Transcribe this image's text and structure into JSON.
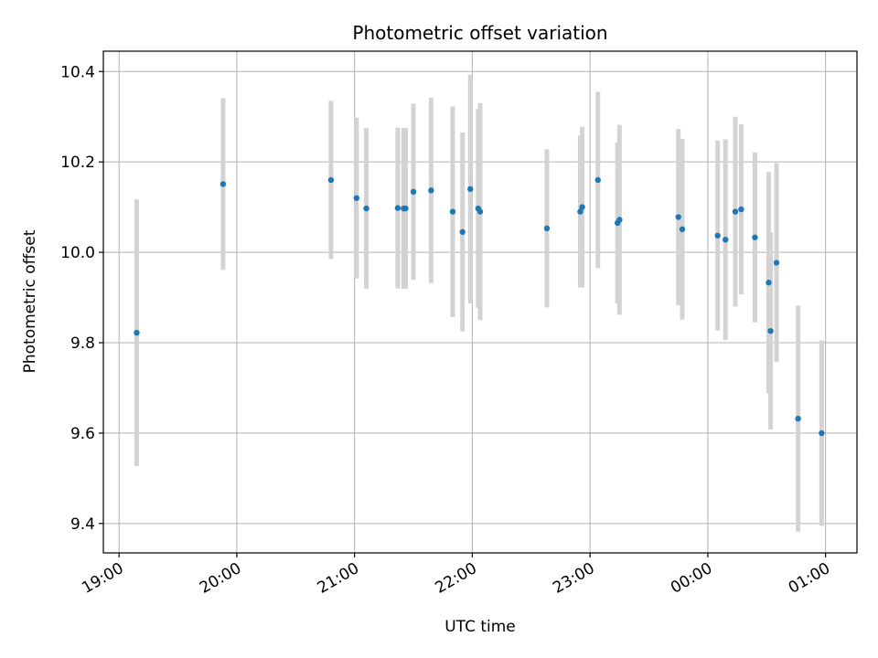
{
  "chart_data": {
    "type": "scatter",
    "title": "Photometric offset variation",
    "xlabel": "UTC time",
    "ylabel": "Photometric offset",
    "x_axis_type": "time",
    "xlim": [
      "18:52",
      "01:16"
    ],
    "ylim": [
      9.335,
      10.445
    ],
    "x_ticks": [
      "19:00",
      "20:00",
      "21:00",
      "22:00",
      "23:00",
      "00:00",
      "01:00"
    ],
    "y_ticks": [
      9.4,
      9.6,
      9.8,
      10.0,
      10.2,
      10.4
    ],
    "y_tick_labels": [
      "9.4",
      "9.6",
      "9.8",
      "10.0",
      "10.2",
      "10.4"
    ],
    "grid": true,
    "colors": {
      "marker": "#1f77b4",
      "errorbar": "#d3d3d3",
      "grid": "#b0b0b0"
    },
    "points": [
      {
        "x": "19:09",
        "y": 9.822,
        "y_err": 0.295
      },
      {
        "x": "19:53",
        "y": 10.151,
        "y_err": 0.19
      },
      {
        "x": "20:48",
        "y": 10.16,
        "y_err": 0.175
      },
      {
        "x": "21:01",
        "y": 10.12,
        "y_err": 0.178
      },
      {
        "x": "21:06",
        "y": 10.097,
        "y_err": 0.178
      },
      {
        "x": "21:22",
        "y": 10.098,
        "y_err": 0.178
      },
      {
        "x": "21:25",
        "y": 10.097,
        "y_err": 0.178
      },
      {
        "x": "21:26",
        "y": 10.097,
        "y_err": 0.178
      },
      {
        "x": "21:30",
        "y": 10.134,
        "y_err": 0.195
      },
      {
        "x": "21:39",
        "y": 10.137,
        "y_err": 0.205
      },
      {
        "x": "21:50",
        "y": 10.09,
        "y_err": 0.233
      },
      {
        "x": "21:55",
        "y": 10.045,
        "y_err": 0.22
      },
      {
        "x": "21:59",
        "y": 10.14,
        "y_err": 0.253
      },
      {
        "x": "22:03",
        "y": 10.097,
        "y_err": 0.22
      },
      {
        "x": "22:04",
        "y": 10.09,
        "y_err": 0.24
      },
      {
        "x": "22:38",
        "y": 10.053,
        "y_err": 0.175
      },
      {
        "x": "22:55",
        "y": 10.09,
        "y_err": 0.168
      },
      {
        "x": "22:56",
        "y": 10.1,
        "y_err": 0.178
      },
      {
        "x": "23:04",
        "y": 10.16,
        "y_err": 0.195
      },
      {
        "x": "23:14",
        "y": 10.065,
        "y_err": 0.178
      },
      {
        "x": "23:15",
        "y": 10.072,
        "y_err": 0.21
      },
      {
        "x": "23:45",
        "y": 10.078,
        "y_err": 0.195
      },
      {
        "x": "23:47",
        "y": 10.051,
        "y_err": 0.2
      },
      {
        "x": "00:05",
        "y": 10.037,
        "y_err": 0.21
      },
      {
        "x": "00:09",
        "y": 10.028,
        "y_err": 0.222
      },
      {
        "x": "00:14",
        "y": 10.09,
        "y_err": 0.21
      },
      {
        "x": "00:17",
        "y": 10.095,
        "y_err": 0.188
      },
      {
        "x": "00:24",
        "y": 10.033,
        "y_err": 0.188
      },
      {
        "x": "00:31",
        "y": 9.933,
        "y_err": 0.245
      },
      {
        "x": "00:32",
        "y": 9.826,
        "y_err": 0.218
      },
      {
        "x": "00:35",
        "y": 9.977,
        "y_err": 0.22
      },
      {
        "x": "00:46",
        "y": 9.632,
        "y_err": 0.25
      },
      {
        "x": "00:58",
        "y": 9.6,
        "y_err": 0.205
      }
    ]
  }
}
